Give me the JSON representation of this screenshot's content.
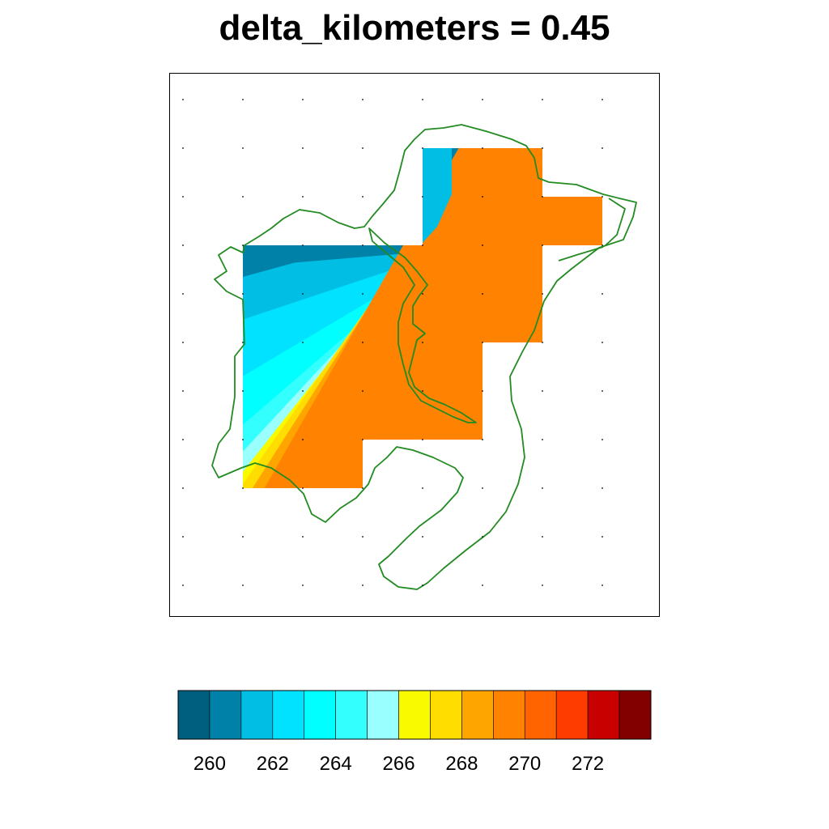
{
  "chart_data": {
    "type": "heatmap",
    "title": "delta_kilometers = 0.45",
    "colorbar": {
      "colors": [
        "#005f7f",
        "#0081a8",
        "#00bee4",
        "#00e2ff",
        "#00ffff",
        "#33ffff",
        "#99ffff",
        "#f9f900",
        "#ffdd00",
        "#ffa500",
        "#ff8200",
        "#ff6400",
        "#ff3c00",
        "#c80000",
        "#820000"
      ],
      "tick_values": [
        260,
        262,
        264,
        266,
        268,
        270,
        272
      ],
      "tick_labels": [
        "260",
        "262",
        "264",
        "266",
        "268",
        "270",
        "272"
      ]
    },
    "colors": {
      "coastline": "#228b22",
      "frame": "#000000"
    },
    "grid_dots": true,
    "field_pattern": "values increase from upper-left (~259.5) to lower-right (~269.5) with diagonal contour bands"
  }
}
